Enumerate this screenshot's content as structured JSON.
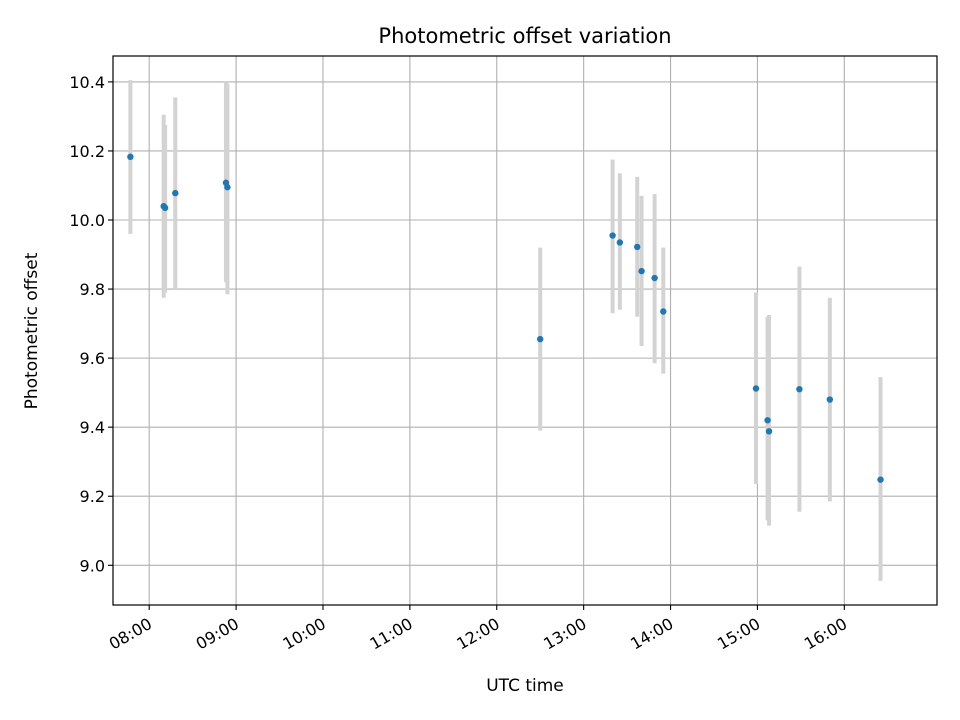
{
  "chart_data": {
    "type": "scatter",
    "title": "Photometric offset variation",
    "xlabel": "UTC time",
    "ylabel": "Photometric offset",
    "x_axis_type": "time",
    "xlim": [
      "07:35",
      "17:04"
    ],
    "ylim": [
      8.885,
      10.475
    ],
    "x_ticks": [
      "08:00",
      "09:00",
      "10:00",
      "11:00",
      "12:00",
      "13:00",
      "14:00",
      "15:00",
      "16:00"
    ],
    "y_ticks": [
      9.0,
      9.2,
      9.4,
      9.6,
      9.8,
      10.0,
      10.2,
      10.4
    ],
    "grid": true,
    "legend": "none",
    "marker_color": "#1f77b4",
    "errorbar_color": "#d3d3d3",
    "points": [
      {
        "x": "07:47",
        "y": 10.183,
        "ylow": 9.96,
        "yhigh": 10.405
      },
      {
        "x": "08:10",
        "y": 10.04,
        "ylow": 9.775,
        "yhigh": 10.305
      },
      {
        "x": "08:11",
        "y": 10.035,
        "ylow": 9.79,
        "yhigh": 10.275
      },
      {
        "x": "08:18",
        "y": 10.078,
        "ylow": 9.8,
        "yhigh": 10.355
      },
      {
        "x": "08:53",
        "y": 10.108,
        "ylow": 9.82,
        "yhigh": 10.4
      },
      {
        "x": "08:54",
        "y": 10.095,
        "ylow": 9.785,
        "yhigh": 10.395
      },
      {
        "x": "12:30",
        "y": 9.655,
        "ylow": 9.39,
        "yhigh": 9.92
      },
      {
        "x": "13:20",
        "y": 9.955,
        "ylow": 9.73,
        "yhigh": 10.175
      },
      {
        "x": "13:25",
        "y": 9.935,
        "ylow": 9.74,
        "yhigh": 10.135
      },
      {
        "x": "13:37",
        "y": 9.922,
        "ylow": 9.72,
        "yhigh": 10.125
      },
      {
        "x": "13:40",
        "y": 9.852,
        "ylow": 9.635,
        "yhigh": 10.07
      },
      {
        "x": "13:49",
        "y": 9.832,
        "ylow": 9.585,
        "yhigh": 10.075
      },
      {
        "x": "13:55",
        "y": 9.735,
        "ylow": 9.555,
        "yhigh": 9.92
      },
      {
        "x": "14:59",
        "y": 9.512,
        "ylow": 9.235,
        "yhigh": 9.79
      },
      {
        "x": "15:07",
        "y": 9.42,
        "ylow": 9.13,
        "yhigh": 9.72
      },
      {
        "x": "15:08",
        "y": 9.388,
        "ylow": 9.115,
        "yhigh": 9.725
      },
      {
        "x": "15:29",
        "y": 9.51,
        "ylow": 9.155,
        "yhigh": 9.865
      },
      {
        "x": "15:50",
        "y": 9.48,
        "ylow": 9.185,
        "yhigh": 9.775
      },
      {
        "x": "16:25",
        "y": 9.248,
        "ylow": 8.955,
        "yhigh": 9.545
      }
    ]
  }
}
